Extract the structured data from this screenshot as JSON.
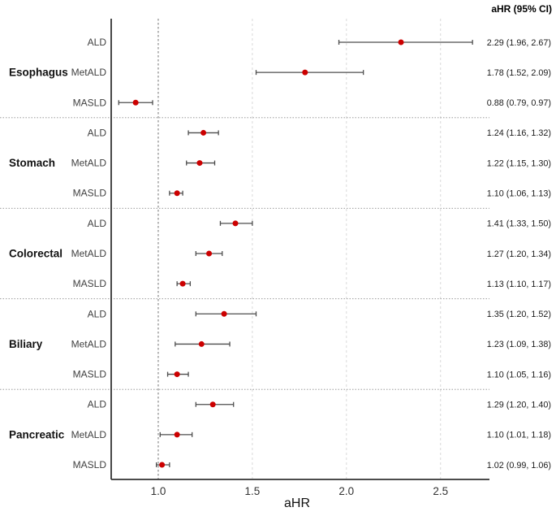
{
  "colors": {
    "point": "#CC0000",
    "ci_line": "#4D4D4D",
    "grid": "#D9D9D9",
    "reference": "#7F7F7F",
    "separator": "#8C8C8C",
    "axis": "#333333"
  },
  "chart_data": {
    "type": "forest",
    "xlabel": "aHR",
    "ci_column_header": "aHR (95% CI)",
    "xlim": [
      0.75,
      2.76
    ],
    "xticks": [
      1.0,
      1.5,
      2.0,
      2.5
    ],
    "reference_line": 1.0,
    "grid": true,
    "groups": [
      {
        "name": "Esophagus",
        "rows": [
          {
            "label": "ALD",
            "est": 2.29,
            "lo": 1.96,
            "hi": 2.67,
            "text": "2.29 (1.96, 2.67)"
          },
          {
            "label": "MetALD",
            "est": 1.78,
            "lo": 1.52,
            "hi": 2.09,
            "text": "1.78 (1.52, 2.09)"
          },
          {
            "label": "MASLD",
            "est": 0.88,
            "lo": 0.79,
            "hi": 0.97,
            "text": "0.88 (0.79, 0.97)"
          }
        ]
      },
      {
        "name": "Stomach",
        "rows": [
          {
            "label": "ALD",
            "est": 1.24,
            "lo": 1.16,
            "hi": 1.32,
            "text": "1.24 (1.16, 1.32)"
          },
          {
            "label": "MetALD",
            "est": 1.22,
            "lo": 1.15,
            "hi": 1.3,
            "text": "1.22 (1.15, 1.30)"
          },
          {
            "label": "MASLD",
            "est": 1.1,
            "lo": 1.06,
            "hi": 1.13,
            "text": "1.10 (1.06, 1.13)"
          }
        ]
      },
      {
        "name": "Colorectal",
        "rows": [
          {
            "label": "ALD",
            "est": 1.41,
            "lo": 1.33,
            "hi": 1.5,
            "text": "1.41 (1.33, 1.50)"
          },
          {
            "label": "MetALD",
            "est": 1.27,
            "lo": 1.2,
            "hi": 1.34,
            "text": "1.27 (1.20, 1.34)"
          },
          {
            "label": "MASLD",
            "est": 1.13,
            "lo": 1.1,
            "hi": 1.17,
            "text": "1.13 (1.10, 1.17)"
          }
        ]
      },
      {
        "name": "Biliary",
        "rows": [
          {
            "label": "ALD",
            "est": 1.35,
            "lo": 1.2,
            "hi": 1.52,
            "text": "1.35 (1.20, 1.52)"
          },
          {
            "label": "MetALD",
            "est": 1.23,
            "lo": 1.09,
            "hi": 1.38,
            "text": "1.23 (1.09, 1.38)"
          },
          {
            "label": "MASLD",
            "est": 1.1,
            "lo": 1.05,
            "hi": 1.16,
            "text": "1.10 (1.05, 1.16)"
          }
        ]
      },
      {
        "name": "Pancreatic",
        "rows": [
          {
            "label": "ALD",
            "est": 1.29,
            "lo": 1.2,
            "hi": 1.4,
            "text": "1.29 (1.20, 1.40)"
          },
          {
            "label": "MetALD",
            "est": 1.1,
            "lo": 1.01,
            "hi": 1.18,
            "text": "1.10 (1.01, 1.18)"
          },
          {
            "label": "MASLD",
            "est": 1.02,
            "lo": 0.99,
            "hi": 1.06,
            "text": "1.02 (0.99, 1.06)"
          }
        ]
      }
    ]
  }
}
